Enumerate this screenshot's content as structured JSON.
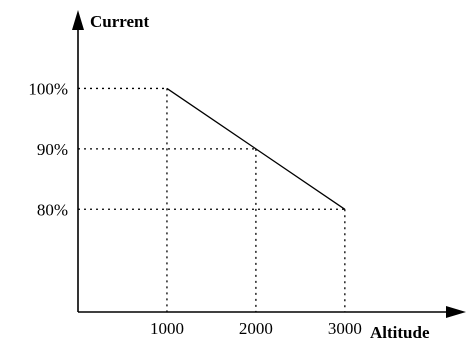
{
  "chart_data": {
    "type": "line",
    "xlabel": "Altitude",
    "ylabel": "Current",
    "x_ticks": [
      "1000",
      "2000",
      "3000"
    ],
    "y_ticks": [
      "100%",
      "90%",
      "80%"
    ],
    "x_tick_values": [
      1000,
      2000,
      3000
    ],
    "y_tick_values": [
      100,
      90,
      80
    ],
    "xlim": [
      0,
      4000
    ],
    "ylim": [
      63,
      110
    ],
    "series": [
      {
        "x": [
          1000,
          2000,
          3000
        ],
        "y": [
          100,
          90,
          80
        ]
      }
    ],
    "grid": "dotted guide lines at each data point"
  }
}
